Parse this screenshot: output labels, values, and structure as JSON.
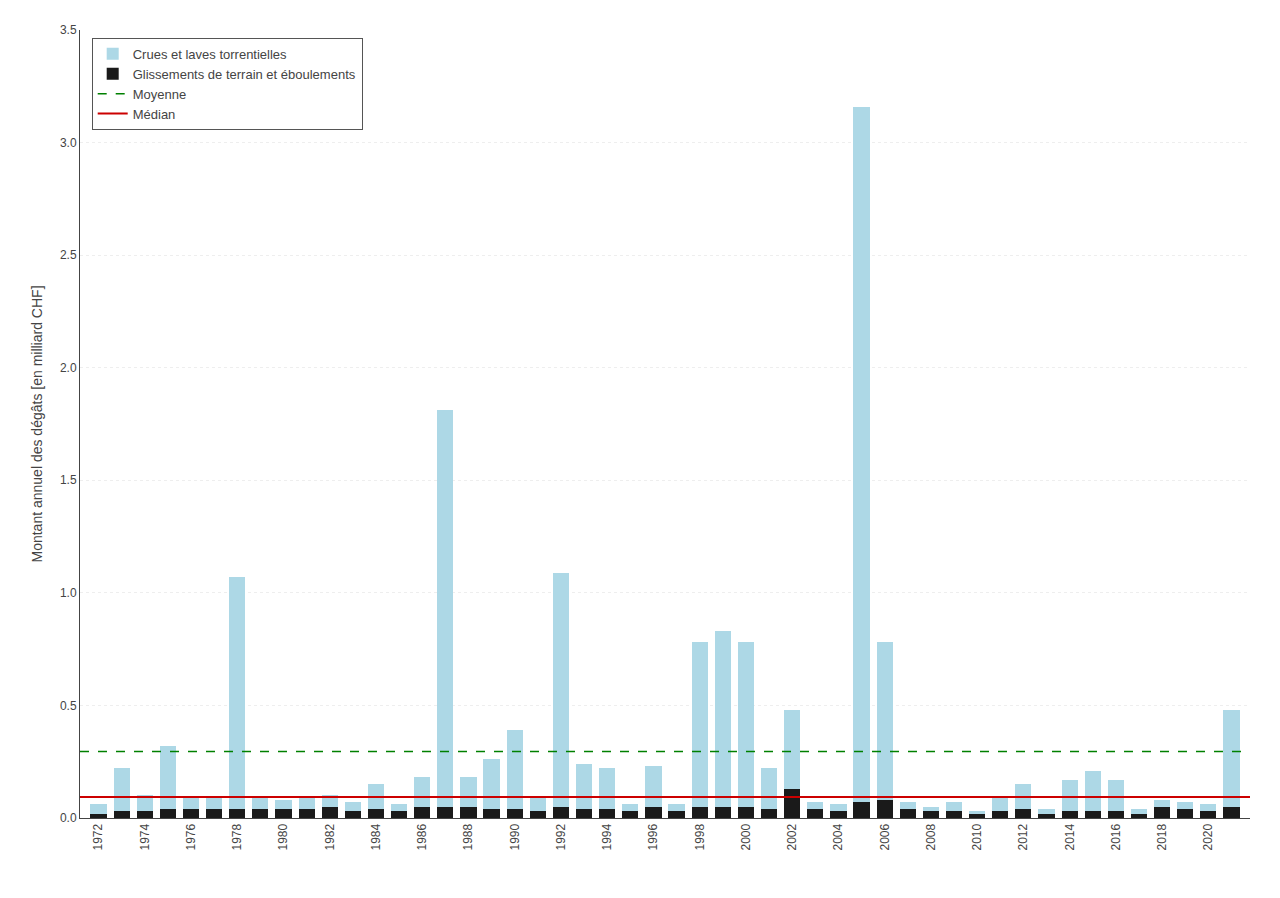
{
  "chart_data": {
    "type": "bar",
    "stacked": true,
    "x": [
      1972,
      1973,
      1974,
      1975,
      1976,
      1977,
      1978,
      1979,
      1980,
      1981,
      1982,
      1983,
      1984,
      1985,
      1986,
      1987,
      1988,
      1989,
      1990,
      1991,
      1992,
      1993,
      1994,
      1995,
      1996,
      1997,
      1998,
      1999,
      2000,
      2001,
      2002,
      2003,
      2004,
      2005,
      2006,
      2007,
      2008,
      2009,
      2010,
      2011,
      2012,
      2013,
      2014,
      2015,
      2016,
      2017,
      2018,
      2019,
      2020,
      2021
    ],
    "series": [
      {
        "name": "Glissements de terrain et éboulements",
        "color": "#1a1a1a",
        "values": [
          0.02,
          0.03,
          0.03,
          0.04,
          0.04,
          0.04,
          0.04,
          0.04,
          0.04,
          0.04,
          0.05,
          0.03,
          0.04,
          0.03,
          0.05,
          0.05,
          0.05,
          0.04,
          0.04,
          0.03,
          0.05,
          0.04,
          0.04,
          0.03,
          0.05,
          0.03,
          0.05,
          0.05,
          0.05,
          0.04,
          0.13,
          0.04,
          0.03,
          0.07,
          0.08,
          0.04,
          0.03,
          0.03,
          0.02,
          0.03,
          0.04,
          0.02,
          0.03,
          0.03,
          0.03,
          0.02,
          0.05,
          0.04,
          0.03,
          0.05
        ]
      },
      {
        "name": "Crues et laves torrentielles",
        "color": "#ADD8E6",
        "values": [
          0.04,
          0.19,
          0.07,
          0.28,
          0.05,
          0.05,
          1.03,
          0.05,
          0.04,
          0.05,
          0.05,
          0.04,
          0.11,
          0.03,
          0.13,
          1.76,
          0.13,
          0.22,
          0.35,
          0.06,
          1.04,
          0.2,
          0.18,
          0.03,
          0.18,
          0.03,
          0.73,
          0.78,
          0.73,
          0.18,
          0.35,
          0.03,
          0.03,
          3.09,
          0.7,
          0.03,
          0.02,
          0.04,
          0.01,
          0.06,
          0.11,
          0.02,
          0.14,
          0.18,
          0.14,
          0.02,
          0.03,
          0.03,
          0.03,
          0.43
        ]
      }
    ],
    "reference_lines": [
      {
        "name": "Moyenne",
        "y": 0.295,
        "color": "#008000",
        "line_style": "dashed"
      },
      {
        "name": "Médian",
        "y": 0.093,
        "color": "#CC0000",
        "line_style": "solid"
      }
    ],
    "ylabel": "Montant annuel des dégâts [en milliard CHF]",
    "xlim": [
      1971.2,
      2021.8
    ],
    "xticks": [
      1972,
      1974,
      1976,
      1978,
      1980,
      1982,
      1984,
      1986,
      1988,
      1990,
      1992,
      1994,
      1996,
      1998,
      2000,
      2002,
      2004,
      2006,
      2008,
      2010,
      2012,
      2014,
      2016,
      2018,
      2020
    ],
    "ylim": [
      0,
      3.5
    ],
    "yticks": [
      {
        "value": 0,
        "label": "0.0"
      },
      0.5,
      {
        "value": 1,
        "label": "1.0"
      },
      1.5,
      {
        "value": 2,
        "label": "2.0"
      },
      2.5,
      {
        "value": 3,
        "label": "3.0"
      },
      3.5
    ],
    "grid": "y",
    "legend": "upper left"
  }
}
